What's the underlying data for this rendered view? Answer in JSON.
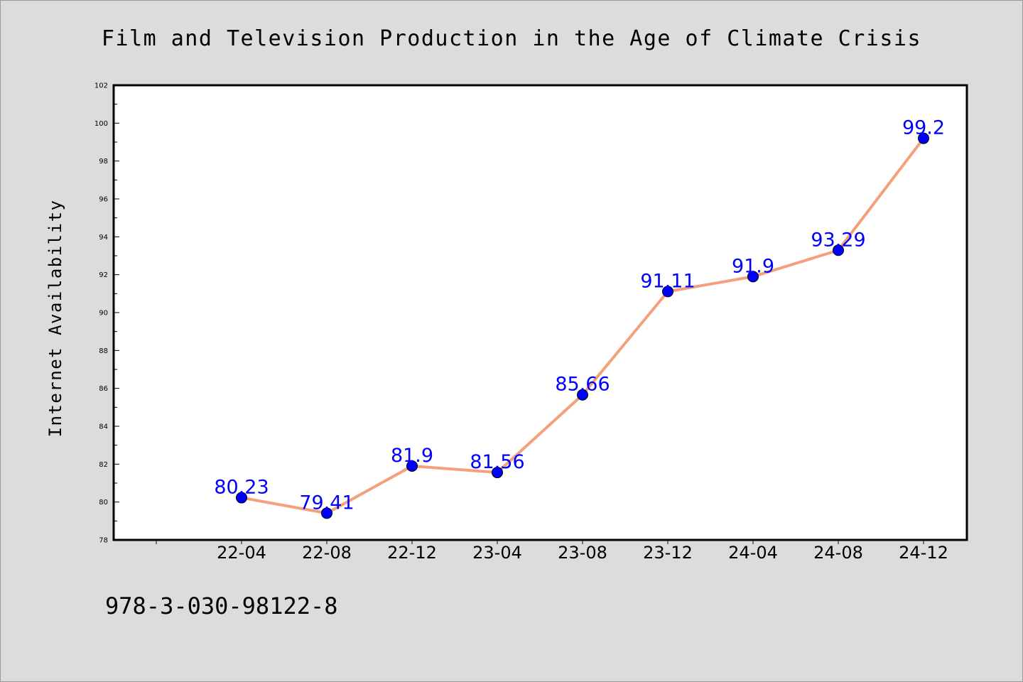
{
  "chart_data": {
    "type": "line",
    "title": "Film and Television Production in the Age of Climate Crisis",
    "xlabel": "",
    "ylabel": "Internet Availability",
    "categories": [
      "22-04",
      "22-08",
      "22-12",
      "23-04",
      "23-08",
      "23-12",
      "24-04",
      "24-08",
      "24-12"
    ],
    "values": [
      80.23,
      79.41,
      81.9,
      81.56,
      85.66,
      91.11,
      91.9,
      93.29,
      99.2
    ],
    "data_labels": [
      "80.23",
      "79.41",
      "81.9",
      "81.56",
      "85.66",
      "91.11",
      "91.9",
      "93.29",
      "99.2"
    ],
    "ylim": [
      78,
      102
    ],
    "yticks": [
      78,
      80,
      82,
      84,
      86,
      88,
      90,
      92,
      94,
      96,
      98,
      100,
      102
    ],
    "grid": false,
    "line_color": "#f4a07c",
    "marker_color": "#0000ff",
    "label_color": "#0000ff"
  },
  "footer": {
    "isbn": "978-3-030-98122-8"
  }
}
